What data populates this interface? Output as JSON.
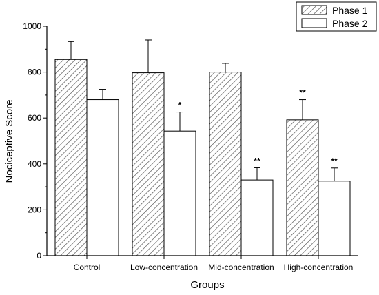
{
  "chart_data": {
    "type": "bar",
    "title": "",
    "xlabel": "Groups",
    "ylabel": "Nociceptive Score",
    "ylim": [
      0,
      1000
    ],
    "yticks": [
      0,
      200,
      400,
      600,
      800,
      1000
    ],
    "ytick_labels": [
      "0",
      "200",
      "400",
      "600",
      "800",
      "1000"
    ],
    "grid": false,
    "legend_position": "top-right",
    "categories": [
      "Control",
      "Low-concentration",
      "Mid-concentration",
      "High-concentration"
    ],
    "series": [
      {
        "name": "Phase 1",
        "fill": "hatched",
        "values": [
          855,
          797,
          800,
          592
        ],
        "errors": [
          78,
          143,
          38,
          88
        ],
        "significance": [
          "",
          "",
          "",
          "**"
        ]
      },
      {
        "name": "Phase 2",
        "fill": "white",
        "values": [
          680,
          543,
          330,
          325
        ],
        "errors": [
          45,
          83,
          53,
          57
        ],
        "significance": [
          "",
          "*",
          "**",
          "**"
        ]
      }
    ]
  }
}
